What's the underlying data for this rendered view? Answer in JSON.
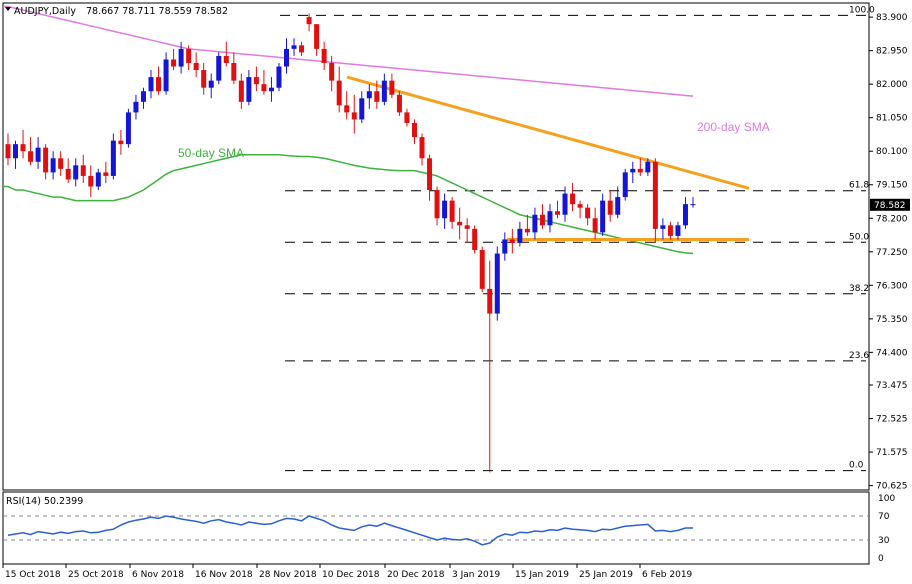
{
  "window": {
    "symbol": "AUDJPY,Daily",
    "ohlc": "78.667 78.711 78.559 78.582",
    "rsi_label": "RSI(14) 50.2399"
  },
  "colors": {
    "bull": "#1515d6",
    "bear": "#e01010",
    "sma50": "#3cb43c",
    "sma200": "#e07ae0",
    "trend": "#f5a020",
    "fib": "#000000",
    "rsi": "#2a5fd6"
  },
  "chart_data": {
    "type": "candlestick",
    "title": "AUDJPY,Daily",
    "price_axis": {
      "ticks": [
        "83.900",
        "82.950",
        "82.000",
        "81.050",
        "80.100",
        "79.150",
        "78.200",
        "77.250",
        "76.300",
        "75.350",
        "74.400",
        "73.475",
        "72.525",
        "71.575",
        "70.625"
      ],
      "range": [
        70.5,
        84.3
      ]
    },
    "current_price": "78.582",
    "x_ticks": [
      "15 Oct 2018",
      "25 Oct 2018",
      "6 Nov 2018",
      "16 Nov 2018",
      "28 Nov 2018",
      "10 Dec 2018",
      "20 Dec 2018",
      "3 Jan 2019",
      "15 Jan 2019",
      "25 Jan 2019",
      "6 Feb 2019"
    ],
    "fib_levels": [
      {
        "label": "100.0",
        "price": 83.95
      },
      {
        "label": "61.8",
        "price": 78.98
      },
      {
        "label": "50.0",
        "price": 77.52
      },
      {
        "label": "38.2",
        "price": 76.06
      },
      {
        "label": "23.6",
        "price": 74.16
      },
      {
        "label": "0.0",
        "price": 71.05
      }
    ],
    "annotations": {
      "sma50": "50-day SMA",
      "sma200": "200-day SMA"
    },
    "candles": [
      [
        80.3,
        80.6,
        79.7,
        79.9
      ],
      [
        79.9,
        80.4,
        79.6,
        80.3
      ],
      [
        80.3,
        80.7,
        79.9,
        80.1
      ],
      [
        80.1,
        80.5,
        79.7,
        79.8
      ],
      [
        79.8,
        80.5,
        79.6,
        80.2
      ],
      [
        80.2,
        80.3,
        79.3,
        79.5
      ],
      [
        79.5,
        80.1,
        79.3,
        79.9
      ],
      [
        79.9,
        80.1,
        79.4,
        79.6
      ],
      [
        79.6,
        79.9,
        79.2,
        79.3
      ],
      [
        79.3,
        79.9,
        79.1,
        79.7
      ],
      [
        79.7,
        80.0,
        79.2,
        79.4
      ],
      [
        79.4,
        79.7,
        78.8,
        79.1
      ],
      [
        79.1,
        79.6,
        79.0,
        79.5
      ],
      [
        79.5,
        79.8,
        79.2,
        79.4
      ],
      [
        79.4,
        80.6,
        79.3,
        80.4
      ],
      [
        80.4,
        80.7,
        80.0,
        80.3
      ],
      [
        80.3,
        81.3,
        80.2,
        81.2
      ],
      [
        81.2,
        81.7,
        81.0,
        81.5
      ],
      [
        81.5,
        81.9,
        81.3,
        81.8
      ],
      [
        81.8,
        82.4,
        81.6,
        82.2
      ],
      [
        82.2,
        82.5,
        81.7,
        81.8
      ],
      [
        81.8,
        82.9,
        81.7,
        82.7
      ],
      [
        82.7,
        83.0,
        82.4,
        82.5
      ],
      [
        82.5,
        83.2,
        82.3,
        83.0
      ],
      [
        83.0,
        83.1,
        82.4,
        82.6
      ],
      [
        82.6,
        82.9,
        82.2,
        82.4
      ],
      [
        82.4,
        82.6,
        81.7,
        81.9
      ],
      [
        81.9,
        82.3,
        81.6,
        82.1
      ],
      [
        82.1,
        82.9,
        82.0,
        82.8
      ],
      [
        82.8,
        83.2,
        82.5,
        82.6
      ],
      [
        82.6,
        82.9,
        82.0,
        82.1
      ],
      [
        82.1,
        82.3,
        81.3,
        81.5
      ],
      [
        81.5,
        82.4,
        81.4,
        82.2
      ],
      [
        82.2,
        82.5,
        81.8,
        82.0
      ],
      [
        82.0,
        82.4,
        81.7,
        81.8
      ],
      [
        81.8,
        82.2,
        81.5,
        81.9
      ],
      [
        81.9,
        82.6,
        81.8,
        82.5
      ],
      [
        82.5,
        83.3,
        82.3,
        83.0
      ],
      [
        83.0,
        83.3,
        82.8,
        83.1
      ],
      [
        83.1,
        83.2,
        82.8,
        82.9
      ],
      [
        83.9,
        84.0,
        83.5,
        83.7
      ],
      [
        83.7,
        83.7,
        82.8,
        83.0
      ],
      [
        83.0,
        83.2,
        82.4,
        82.6
      ],
      [
        82.6,
        82.8,
        81.8,
        82.1
      ],
      [
        82.1,
        82.5,
        81.2,
        81.4
      ],
      [
        81.4,
        81.8,
        81.0,
        81.2
      ],
      [
        81.2,
        81.7,
        80.6,
        81.0
      ],
      [
        81.0,
        81.8,
        80.9,
        81.6
      ],
      [
        81.6,
        82.0,
        81.3,
        81.8
      ],
      [
        81.8,
        82.1,
        81.3,
        81.5
      ],
      [
        81.5,
        82.3,
        81.4,
        82.1
      ],
      [
        82.1,
        82.3,
        81.6,
        81.7
      ],
      [
        81.7,
        81.8,
        81.1,
        81.2
      ],
      [
        81.2,
        81.3,
        80.8,
        80.9
      ],
      [
        80.9,
        81.0,
        80.3,
        80.5
      ],
      [
        80.5,
        80.6,
        79.7,
        79.9
      ],
      [
        79.9,
        80.0,
        78.7,
        79.0
      ],
      [
        79.0,
        79.1,
        78.0,
        78.2
      ],
      [
        78.2,
        78.9,
        77.9,
        78.7
      ],
      [
        78.7,
        78.8,
        77.9,
        78.1
      ],
      [
        78.1,
        78.5,
        77.6,
        78.0
      ],
      [
        78.0,
        78.2,
        77.5,
        77.9
      ],
      [
        77.9,
        78.0,
        77.2,
        77.3
      ],
      [
        77.3,
        77.4,
        76.1,
        76.2
      ],
      [
        76.2,
        77.0,
        71.0,
        75.5
      ],
      [
        75.5,
        77.4,
        75.3,
        77.2
      ],
      [
        77.2,
        77.8,
        77.0,
        77.6
      ],
      [
        77.6,
        77.9,
        77.2,
        77.5
      ],
      [
        77.5,
        78.1,
        77.4,
        77.9
      ],
      [
        77.9,
        78.3,
        77.7,
        77.8
      ],
      [
        77.8,
        78.5,
        77.6,
        78.3
      ],
      [
        78.3,
        78.6,
        77.9,
        78.0
      ],
      [
        78.0,
        78.6,
        77.8,
        78.4
      ],
      [
        78.4,
        78.7,
        78.2,
        78.3
      ],
      [
        78.3,
        79.1,
        78.1,
        78.9
      ],
      [
        78.9,
        79.2,
        78.4,
        78.6
      ],
      [
        78.6,
        78.7,
        78.2,
        78.5
      ],
      [
        78.5,
        78.6,
        78.0,
        78.2
      ],
      [
        78.2,
        78.5,
        77.6,
        77.8
      ],
      [
        77.8,
        78.9,
        77.7,
        78.7
      ],
      [
        78.7,
        79.0,
        78.1,
        78.3
      ],
      [
        78.3,
        79.1,
        78.2,
        78.8
      ],
      [
        78.8,
        79.6,
        78.7,
        79.5
      ],
      [
        79.5,
        79.8,
        79.2,
        79.6
      ],
      [
        79.6,
        79.9,
        79.4,
        79.5
      ],
      [
        79.5,
        79.9,
        79.4,
        79.8
      ],
      [
        79.8,
        79.9,
        77.5,
        77.9
      ],
      [
        77.9,
        78.2,
        77.6,
        78.0
      ],
      [
        78.0,
        78.1,
        77.6,
        77.7
      ],
      [
        77.7,
        78.1,
        77.6,
        78.0
      ],
      [
        78.0,
        78.8,
        77.9,
        78.6
      ],
      [
        78.6,
        78.8,
        78.5,
        78.6
      ]
    ],
    "sma50": [
      79.1,
      79.0,
      79.0,
      78.95,
      78.9,
      78.85,
      78.8,
      78.8,
      78.75,
      78.7,
      78.7,
      78.7,
      78.7,
      78.7,
      78.7,
      78.75,
      78.8,
      78.9,
      79.0,
      79.15,
      79.3,
      79.45,
      79.55,
      79.6,
      79.65,
      79.7,
      79.75,
      79.8,
      79.85,
      79.9,
      79.95,
      80.0,
      80.0,
      80.0,
      80.0,
      80.0,
      80.0,
      79.98,
      79.96,
      79.95,
      79.95,
      79.93,
      79.9,
      79.85,
      79.8,
      79.75,
      79.7,
      79.66,
      79.62,
      79.6,
      79.58,
      79.56,
      79.55,
      79.55,
      79.55,
      79.5,
      79.45,
      79.4,
      79.3,
      79.2,
      79.1,
      79.0,
      78.9,
      78.8,
      78.7,
      78.6,
      78.5,
      78.4,
      78.3,
      78.25,
      78.2,
      78.15,
      78.1,
      78.05,
      78.0,
      77.95,
      77.9,
      77.85,
      77.8,
      77.75,
      77.7,
      77.65,
      77.6,
      77.55,
      77.5,
      77.45,
      77.4,
      77.35,
      77.3,
      77.25,
      77.22,
      77.2
    ],
    "sma200": [
      84.2,
      84.15,
      84.1,
      84.05,
      84.0,
      83.95,
      83.9,
      83.85,
      83.8,
      83.75,
      83.7,
      83.65,
      83.6,
      83.55,
      83.5,
      83.45,
      83.4,
      83.35,
      83.3,
      83.25,
      83.2,
      83.15,
      83.1,
      83.05,
      83.0,
      82.98,
      82.96,
      82.94,
      82.92,
      82.9,
      82.88,
      82.86,
      82.84,
      82.82,
      82.8,
      82.78,
      82.76,
      82.74,
      82.72,
      82.7,
      82.68,
      82.66,
      82.64,
      82.62,
      82.6,
      82.58,
      82.56,
      82.54,
      82.52,
      82.5,
      82.48,
      82.46,
      82.44,
      82.42,
      82.4,
      82.38,
      82.36,
      82.34,
      82.32,
      82.3,
      82.28,
      82.26,
      82.24,
      82.22,
      82.2,
      82.18,
      82.16,
      82.14,
      82.12,
      82.1,
      82.08,
      82.06,
      82.04,
      82.02,
      82.0,
      81.98,
      81.96,
      81.94,
      81.92,
      81.9,
      81.88,
      81.86,
      81.84,
      81.82,
      81.8,
      81.78,
      81.76,
      81.74,
      81.72,
      81.7,
      81.68,
      81.66
    ],
    "rsi": {
      "label": "RSI(14) 50.2399",
      "ticks": [
        "100",
        "70",
        "30",
        "0"
      ],
      "values": [
        38,
        40,
        42,
        39,
        44,
        42,
        40,
        43,
        41,
        44,
        45,
        42,
        43,
        46,
        48,
        55,
        60,
        63,
        65,
        68,
        66,
        70,
        68,
        65,
        63,
        61,
        58,
        62,
        64,
        60,
        58,
        55,
        60,
        58,
        56,
        57,
        62,
        66,
        65,
        62,
        70,
        66,
        62,
        55,
        50,
        48,
        46,
        52,
        55,
        53,
        58,
        54,
        50,
        46,
        42,
        38,
        34,
        30,
        33,
        31,
        30,
        32,
        28,
        22,
        25,
        35,
        40,
        38,
        43,
        42,
        45,
        44,
        47,
        46,
        50,
        48,
        47,
        46,
        44,
        48,
        47,
        50,
        53,
        54,
        55,
        56,
        45,
        46,
        44,
        46,
        50,
        50
      ]
    }
  }
}
